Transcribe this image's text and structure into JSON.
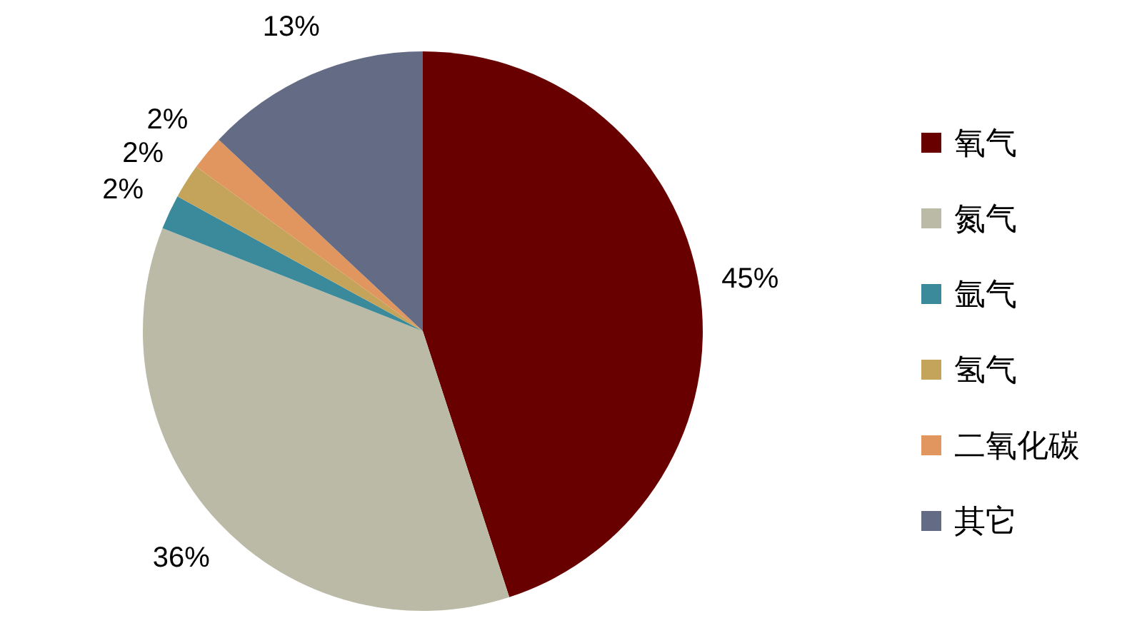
{
  "chart_data": {
    "type": "pie",
    "categories": [
      "氧气",
      "氮气",
      "氩气",
      "氢气",
      "二氧化碳",
      "其它"
    ],
    "values": [
      45,
      36,
      2,
      2,
      2,
      13
    ],
    "colors": [
      "#680000",
      "#bbbaa6",
      "#3a8a9c",
      "#c4a35a",
      "#e0965e",
      "#646b85"
    ],
    "value_labels": [
      "45%",
      "36%",
      "2%",
      "2%",
      "2%",
      "13%"
    ],
    "legend": "right"
  }
}
